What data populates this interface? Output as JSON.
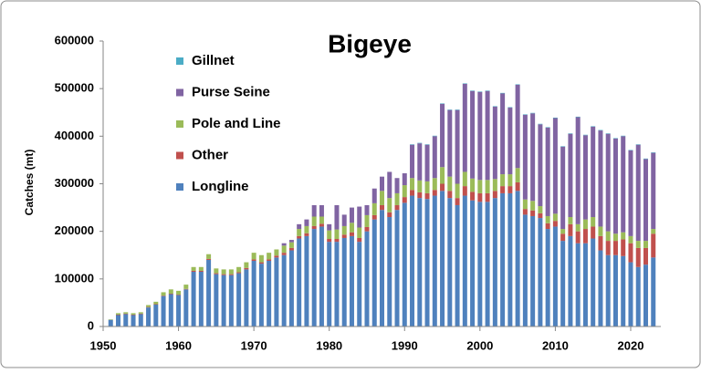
{
  "chart_data": {
    "type": "stacked_bar",
    "title": "Bigeye",
    "y_label": "Catches (mt)",
    "x": [
      1951,
      1952,
      1953,
      1954,
      1955,
      1956,
      1957,
      1958,
      1959,
      1960,
      1961,
      1962,
      1963,
      1964,
      1965,
      1966,
      1967,
      1968,
      1969,
      1970,
      1971,
      1972,
      1973,
      1974,
      1975,
      1976,
      1977,
      1978,
      1979,
      1980,
      1981,
      1982,
      1983,
      1984,
      1985,
      1986,
      1987,
      1988,
      1989,
      1990,
      1991,
      1992,
      1993,
      1994,
      1995,
      1996,
      1997,
      1998,
      1999,
      2000,
      2001,
      2002,
      2003,
      2004,
      2005,
      2006,
      2007,
      2008,
      2009,
      2010,
      2011,
      2012,
      2013,
      2014,
      2015,
      2016,
      2017,
      2018,
      2019,
      2020,
      2021,
      2022,
      2023
    ],
    "series": [
      {
        "name": "Longline",
        "color": "#4f81bd",
        "values": [
          14000,
          24000,
          26000,
          24000,
          26000,
          40000,
          46000,
          64000,
          68000,
          66000,
          78000,
          115000,
          115000,
          140000,
          110000,
          108000,
          108000,
          112000,
          120000,
          138000,
          132000,
          138000,
          145000,
          150000,
          160000,
          185000,
          190000,
          205000,
          210000,
          178000,
          178000,
          186000,
          190000,
          178000,
          200000,
          225000,
          245000,
          230000,
          245000,
          260000,
          275000,
          270000,
          268000,
          275000,
          285000,
          270000,
          255000,
          275000,
          265000,
          262000,
          262000,
          270000,
          280000,
          280000,
          285000,
          235000,
          232000,
          228000,
          205000,
          210000,
          180000,
          190000,
          175000,
          175000,
          185000,
          160000,
          150000,
          150000,
          148000,
          135000,
          125000,
          130000,
          145000
        ]
      },
      {
        "name": "Other",
        "color": "#c0504d",
        "values": [
          0,
          1000,
          1000,
          1000,
          1000,
          1000,
          1000,
          1000,
          1000,
          1000,
          1000,
          2000,
          2000,
          2000,
          2000,
          2000,
          2000,
          2000,
          3000,
          3000,
          3000,
          3000,
          4000,
          5000,
          5000,
          5000,
          6000,
          6000,
          6000,
          6000,
          6000,
          7000,
          8000,
          8000,
          9000,
          9000,
          10000,
          10000,
          10000,
          12000,
          12000,
          12000,
          12000,
          12000,
          15000,
          15000,
          15000,
          20000,
          18000,
          18000,
          18000,
          15000,
          15000,
          15000,
          18000,
          12000,
          12000,
          10000,
          12000,
          12000,
          15000,
          25000,
          25000,
          30000,
          25000,
          30000,
          30000,
          30000,
          35000,
          40000,
          40000,
          35000,
          50000
        ]
      },
      {
        "name": "Pole and Line",
        "color": "#9bbb59",
        "values": [
          1000,
          3000,
          3000,
          3000,
          3000,
          4000,
          5000,
          7000,
          9000,
          8000,
          9000,
          8000,
          8000,
          10000,
          10000,
          10000,
          10000,
          11000,
          12000,
          14000,
          15000,
          14000,
          13000,
          15000,
          12000,
          15000,
          15000,
          20000,
          15000,
          18000,
          20000,
          18000,
          20000,
          22000,
          25000,
          25000,
          30000,
          30000,
          25000,
          25000,
          25000,
          25000,
          25000,
          25000,
          35000,
          30000,
          30000,
          30000,
          28000,
          28000,
          28000,
          25000,
          25000,
          25000,
          30000,
          20000,
          20000,
          15000,
          15000,
          15000,
          10000,
          15000,
          15000,
          20000,
          20000,
          20000,
          20000,
          15000,
          15000,
          15000,
          15000,
          15000,
          10000
        ]
      },
      {
        "name": "Purse Seine",
        "color": "#8064a2",
        "values": [
          0,
          0,
          0,
          0,
          0,
          0,
          0,
          0,
          0,
          0,
          0,
          0,
          0,
          0,
          0,
          0,
          0,
          0,
          0,
          0,
          0,
          0,
          0,
          5000,
          5000,
          10000,
          14000,
          24000,
          24000,
          13000,
          51000,
          24000,
          32000,
          44000,
          21000,
          31000,
          30000,
          55000,
          32000,
          25000,
          70000,
          78000,
          77000,
          88000,
          133000,
          140000,
          155000,
          185000,
          184000,
          185000,
          187000,
          152000,
          170000,
          140000,
          175000,
          178000,
          184000,
          172000,
          186000,
          201000,
          173000,
          175000,
          225000,
          177000,
          190000,
          202000,
          205000,
          200000,
          202000,
          180000,
          202000,
          172000,
          160000
        ]
      },
      {
        "name": "Gillnet",
        "color": "#4bacc6",
        "values": [
          0,
          0,
          0,
          0,
          0,
          0,
          0,
          0,
          0,
          0,
          0,
          0,
          0,
          0,
          0,
          0,
          0,
          0,
          0,
          0,
          0,
          0,
          0,
          0,
          0,
          0,
          0,
          0,
          0,
          0,
          0,
          0,
          0,
          0,
          0,
          0,
          0,
          0,
          0,
          0,
          1000,
          1000,
          1000,
          1000,
          1000,
          1000,
          1000,
          1000,
          1000,
          1000,
          1000,
          1000,
          1000,
          1000,
          1000,
          1000,
          1000,
          1000,
          1000,
          1000,
          1000,
          1000,
          1000,
          1000,
          1000,
          1000,
          1000,
          1000,
          1000,
          1000,
          1000,
          1000,
          1000
        ]
      }
    ],
    "xlim": [
      1950,
      2024
    ],
    "xticks": [
      1950,
      1960,
      1970,
      1980,
      1990,
      2000,
      2010,
      2020
    ],
    "ylim": [
      0,
      600000
    ],
    "yticks": [
      0,
      100000,
      200000,
      300000,
      400000,
      500000,
      600000
    ],
    "grid": false,
    "legend": "upper left"
  }
}
